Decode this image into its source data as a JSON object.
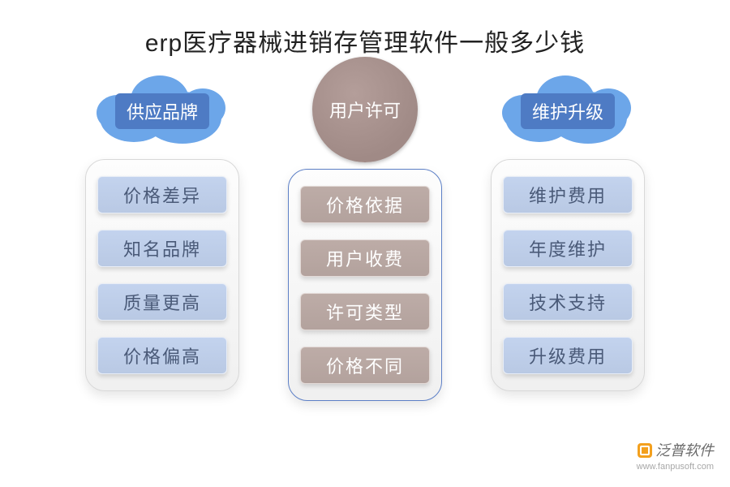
{
  "title": {
    "text": "erp医疗器械进销存管理软件一般多少钱",
    "fontsize": 30,
    "color": "#222222"
  },
  "background_color": "#ffffff",
  "layout": {
    "type": "infographic",
    "arrangement": "three-columns",
    "column_gap": 60
  },
  "columns": [
    {
      "id": "supply-brand",
      "header": {
        "shape": "cloud",
        "cloud_color": "#6ca6e9",
        "label": "供应品牌",
        "label_bg": "#4e7bc4",
        "label_color": "#ffffff",
        "label_fontsize": 22
      },
      "panel": {
        "border_color": "#d8d8d8",
        "item_bg": "#b9c9e4",
        "item_border": "#e8edf6",
        "item_text_color": "#4a5a78",
        "item_fontsize": 22,
        "items": [
          "价格差异",
          "知名品牌",
          "质量更高",
          "价格偏高"
        ]
      }
    },
    {
      "id": "user-license",
      "header": {
        "shape": "circle",
        "circle_color": "#a08a86",
        "label": "用户许可",
        "label_color": "#ffffff",
        "label_fontsize": 22
      },
      "panel": {
        "border_color": "#5c7fc6",
        "item_bg": "#b3a29d",
        "item_border": "#e3dad7",
        "item_text_color": "#ffffff",
        "item_fontsize": 22,
        "items": [
          "价格依据",
          "用户收费",
          "许可类型",
          "价格不同"
        ]
      }
    },
    {
      "id": "maintain-upgrade",
      "header": {
        "shape": "cloud",
        "cloud_color": "#6ca6e9",
        "label": "维护升级",
        "label_bg": "#4e7bc4",
        "label_color": "#ffffff",
        "label_fontsize": 22
      },
      "panel": {
        "border_color": "#d8d8d8",
        "item_bg": "#b9c9e4",
        "item_border": "#e8edf6",
        "item_text_color": "#4a5a78",
        "item_fontsize": 22,
        "items": [
          "维护费用",
          "年度维护",
          "技术支持",
          "升级费用"
        ]
      }
    }
  ],
  "watermark": {
    "brand": "泛普软件",
    "url": "www.fanpusoft.com"
  },
  "side_watermark": ""
}
